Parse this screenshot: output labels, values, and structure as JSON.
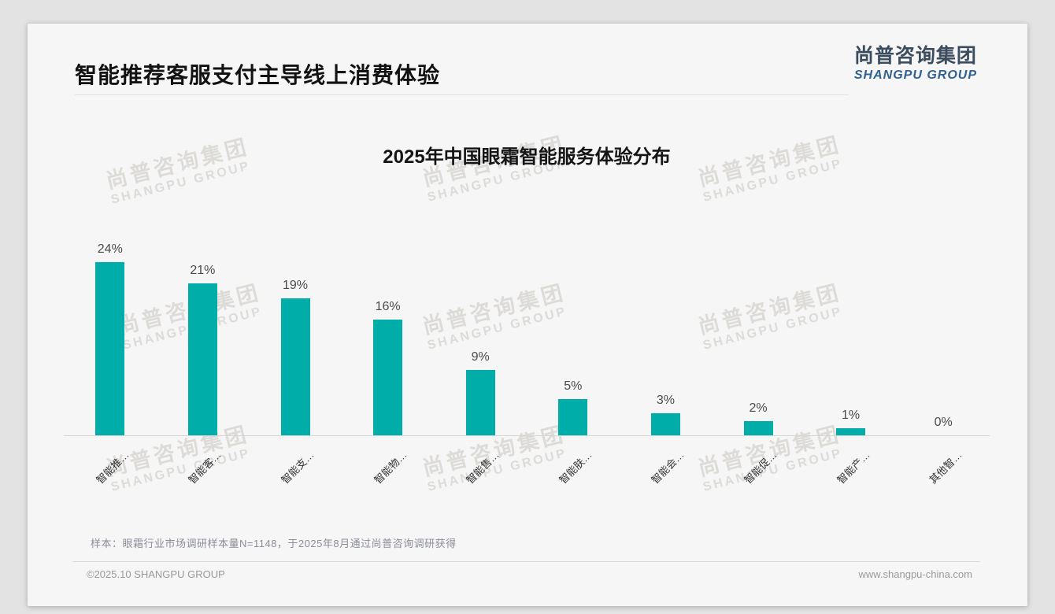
{
  "header": {
    "title": "智能推荐客服支付主导线上消费体验",
    "logo_zh": "尚普咨询集团",
    "logo_en": "SHANGPU GROUP"
  },
  "watermark": {
    "line1": "尚普咨询集团",
    "line2": "SHANGPU GROUP"
  },
  "chart_data": {
    "type": "bar",
    "title": "2025年中国眼霜智能服务体验分布",
    "categories": [
      "智能推…",
      "智能客…",
      "智能支…",
      "智能物…",
      "智能售…",
      "智能肤…",
      "智能会…",
      "智能促…",
      "智能产…",
      "其他智…"
    ],
    "values": [
      24,
      21,
      19,
      16,
      9,
      5,
      3,
      2,
      1,
      0
    ],
    "value_labels": [
      "24%",
      "21%",
      "19%",
      "16%",
      "9%",
      "5%",
      "3%",
      "2%",
      "1%",
      "0%"
    ],
    "unit": "%",
    "bar_color": "#00ADA9",
    "ylim": [
      0,
      24
    ],
    "grid": false,
    "legend": "none",
    "x_label_rotation": -45
  },
  "footer": {
    "note": "样本：眼霜行业市场调研样本量N=1148，于2025年8月通过尚普咨询调研获得",
    "copyright": "©2025.10 SHANGPU GROUP",
    "website": "www.shangpu-china.com"
  }
}
